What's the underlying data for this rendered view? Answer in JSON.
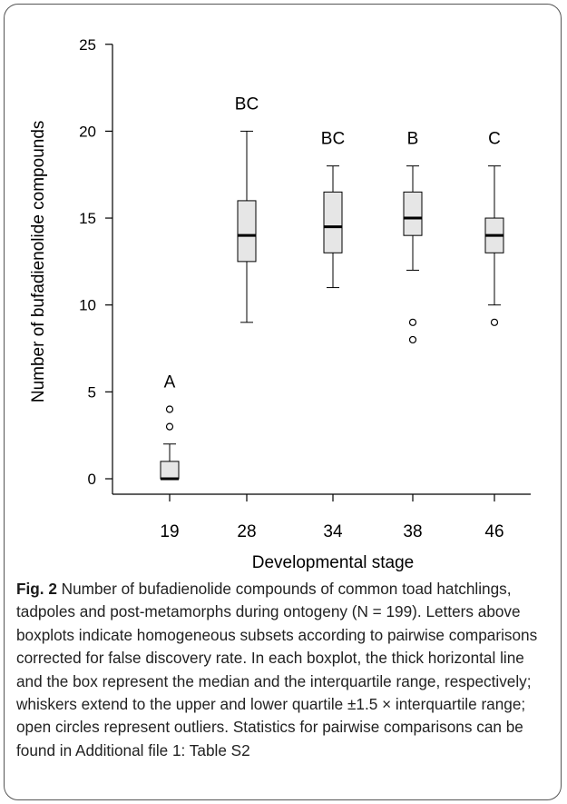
{
  "chart_data": {
    "type": "boxplot",
    "title": "",
    "xlabel": "Developmental stage",
    "ylabel": "Number of bufadienolide compounds",
    "ylim": [
      -1,
      26
    ],
    "yticks": [
      0,
      5,
      10,
      15,
      20,
      25
    ],
    "categories": [
      "19",
      "28",
      "34",
      "38",
      "46"
    ],
    "boxes": [
      {
        "stage": "19",
        "q1": 0,
        "median": 0,
        "q3": 1,
        "whisker_low": 0,
        "whisker_high": 2,
        "outliers": [
          3,
          4
        ],
        "letter": "A"
      },
      {
        "stage": "28",
        "q1": 12.5,
        "median": 14,
        "q3": 16,
        "whisker_low": 9,
        "whisker_high": 20,
        "outliers": [],
        "letter": "BC"
      },
      {
        "stage": "34",
        "q1": 13,
        "median": 14.5,
        "q3": 16.5,
        "whisker_low": 11,
        "whisker_high": 18,
        "outliers": [],
        "letter": "BC"
      },
      {
        "stage": "38",
        "q1": 14,
        "median": 15,
        "q3": 16.5,
        "whisker_low": 12,
        "whisker_high": 18,
        "outliers": [
          9,
          8
        ],
        "letter": "B"
      },
      {
        "stage": "46",
        "q1": 13,
        "median": 14,
        "q3": 15,
        "whisker_low": 10,
        "whisker_high": 18,
        "outliers": [
          9
        ],
        "letter": "C"
      }
    ],
    "colors": {
      "box_fill": "#e6e6e6",
      "stroke": "#000000"
    }
  },
  "caption": {
    "label": "Fig. 2",
    "text": "Number of bufadienolide compounds of common toad hatchlings, tadpoles and post-metamorphs during ontogeny (N = 199). Letters above boxplots indicate homogeneous subsets according to pairwise comparisons corrected for false discovery rate. In each boxplot, the thick horizontal line and the box represent the median and the interquartile range, respectively; whiskers extend to the upper and lower quartile ±1.5 × interquartile range; open circles represent outliers. Statistics for pairwise comparisons can be found in Additional file 1: Table S2"
  }
}
